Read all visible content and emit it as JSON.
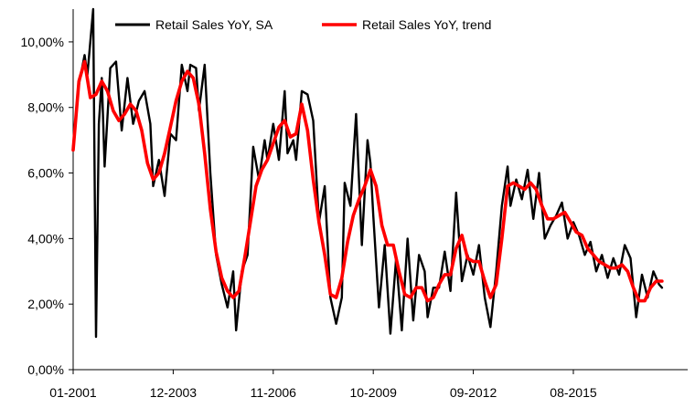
{
  "chart_data": {
    "type": "line",
    "title": "",
    "xlabel": "",
    "ylabel": "",
    "x_start": "01-2001",
    "x_end": "12-2018",
    "x_ticks": [
      "01-2001",
      "12-2003",
      "11-2006",
      "10-2009",
      "09-2012",
      "08-2015"
    ],
    "ylim": [
      0,
      11
    ],
    "y_ticks": [
      "0,00%",
      "2,00%",
      "4,00%",
      "6,00%",
      "8,00%",
      "10,00%"
    ],
    "grid": false,
    "legend_position": "top",
    "series": [
      {
        "name": "Retail Sales YoY, SA",
        "color": "#000000",
        "points": [
          [
            "01-2001",
            6.8
          ],
          [
            "03-2001",
            8.7
          ],
          [
            "05-2001",
            9.6
          ],
          [
            "06-2001",
            9.0
          ],
          [
            "08-2001",
            11.0
          ],
          [
            "09-2001",
            1.0
          ],
          [
            "10-2001",
            7.5
          ],
          [
            "11-2001",
            8.9
          ],
          [
            "12-2001",
            6.2
          ],
          [
            "02-2002",
            9.2
          ],
          [
            "04-2002",
            9.4
          ],
          [
            "06-2002",
            7.3
          ],
          [
            "08-2002",
            8.9
          ],
          [
            "10-2002",
            7.5
          ],
          [
            "12-2002",
            8.2
          ],
          [
            "02-2003",
            8.5
          ],
          [
            "04-2003",
            7.5
          ],
          [
            "05-2003",
            5.6
          ],
          [
            "07-2003",
            6.4
          ],
          [
            "09-2003",
            5.3
          ],
          [
            "11-2003",
            7.2
          ],
          [
            "01-2004",
            7.0
          ],
          [
            "03-2004",
            9.3
          ],
          [
            "05-2004",
            8.5
          ],
          [
            "06-2004",
            9.3
          ],
          [
            "08-2004",
            9.2
          ],
          [
            "09-2004",
            7.9
          ],
          [
            "11-2004",
            9.3
          ],
          [
            "01-2005",
            6.0
          ],
          [
            "03-2005",
            3.5
          ],
          [
            "05-2005",
            2.6
          ],
          [
            "07-2005",
            1.9
          ],
          [
            "09-2005",
            3.0
          ],
          [
            "10-2005",
            1.2
          ],
          [
            "12-2005",
            3.0
          ],
          [
            "02-2006",
            3.5
          ],
          [
            "04-2006",
            6.8
          ],
          [
            "06-2006",
            5.8
          ],
          [
            "08-2006",
            7.0
          ],
          [
            "09-2006",
            6.4
          ],
          [
            "11-2006",
            7.5
          ],
          [
            "01-2007",
            6.4
          ],
          [
            "03-2007",
            8.5
          ],
          [
            "04-2007",
            6.6
          ],
          [
            "06-2007",
            7.0
          ],
          [
            "07-2007",
            6.4
          ],
          [
            "09-2007",
            8.5
          ],
          [
            "11-2007",
            8.4
          ],
          [
            "01-2008",
            7.6
          ],
          [
            "03-2008",
            4.5
          ],
          [
            "05-2008",
            5.6
          ],
          [
            "07-2008",
            2.2
          ],
          [
            "09-2008",
            1.4
          ],
          [
            "11-2008",
            2.2
          ],
          [
            "12-2008",
            5.7
          ],
          [
            "02-2009",
            5.0
          ],
          [
            "04-2009",
            7.8
          ],
          [
            "06-2009",
            3.8
          ],
          [
            "08-2009",
            7.0
          ],
          [
            "09-2009",
            6.3
          ],
          [
            "10-2009",
            4.7
          ],
          [
            "12-2009",
            1.9
          ],
          [
            "02-2010",
            3.8
          ],
          [
            "04-2010",
            1.1
          ],
          [
            "06-2010",
            3.4
          ],
          [
            "08-2010",
            1.2
          ],
          [
            "10-2010",
            4.0
          ],
          [
            "12-2010",
            1.5
          ],
          [
            "02-2011",
            3.5
          ],
          [
            "04-2011",
            3.0
          ],
          [
            "05-2011",
            1.6
          ],
          [
            "07-2011",
            2.5
          ],
          [
            "09-2011",
            2.5
          ],
          [
            "11-2011",
            3.6
          ],
          [
            "01-2012",
            2.4
          ],
          [
            "03-2012",
            5.4
          ],
          [
            "05-2012",
            2.7
          ],
          [
            "07-2012",
            3.5
          ],
          [
            "09-2012",
            2.9
          ],
          [
            "11-2012",
            3.8
          ],
          [
            "01-2013",
            2.2
          ],
          [
            "03-2013",
            1.3
          ],
          [
            "05-2013",
            3.0
          ],
          [
            "07-2013",
            5.0
          ],
          [
            "09-2013",
            6.2
          ],
          [
            "10-2013",
            5.0
          ],
          [
            "12-2013",
            5.8
          ],
          [
            "02-2014",
            5.2
          ],
          [
            "04-2014",
            6.1
          ],
          [
            "06-2014",
            4.6
          ],
          [
            "08-2014",
            6.0
          ],
          [
            "10-2014",
            4.0
          ],
          [
            "12-2014",
            4.4
          ],
          [
            "02-2015",
            4.7
          ],
          [
            "04-2015",
            5.1
          ],
          [
            "06-2015",
            4.0
          ],
          [
            "08-2015",
            4.5
          ],
          [
            "10-2015",
            4.1
          ],
          [
            "12-2015",
            3.5
          ],
          [
            "02-2016",
            3.9
          ],
          [
            "04-2016",
            3.0
          ],
          [
            "06-2016",
            3.5
          ],
          [
            "08-2016",
            2.8
          ],
          [
            "10-2016",
            3.4
          ],
          [
            "12-2016",
            2.9
          ],
          [
            "02-2017",
            3.8
          ],
          [
            "04-2017",
            3.4
          ],
          [
            "06-2017",
            1.6
          ],
          [
            "08-2017",
            2.9
          ],
          [
            "10-2017",
            2.2
          ],
          [
            "12-2017",
            3.0
          ],
          [
            "02-2018",
            2.6
          ],
          [
            "03-2018",
            2.5
          ]
        ]
      },
      {
        "name": "Retail Sales YoY, trend",
        "color": "#ff0000",
        "points": [
          [
            "01-2001",
            6.7
          ],
          [
            "03-2001",
            8.8
          ],
          [
            "05-2001",
            9.4
          ],
          [
            "07-2001",
            8.3
          ],
          [
            "09-2001",
            8.4
          ],
          [
            "11-2001",
            8.8
          ],
          [
            "01-2002",
            8.5
          ],
          [
            "03-2002",
            7.9
          ],
          [
            "05-2002",
            7.6
          ],
          [
            "07-2002",
            7.8
          ],
          [
            "09-2002",
            8.1
          ],
          [
            "11-2002",
            7.9
          ],
          [
            "01-2003",
            7.3
          ],
          [
            "03-2003",
            6.3
          ],
          [
            "05-2003",
            5.8
          ],
          [
            "07-2003",
            6.0
          ],
          [
            "09-2003",
            6.6
          ],
          [
            "11-2003",
            7.4
          ],
          [
            "01-2004",
            8.2
          ],
          [
            "03-2004",
            8.8
          ],
          [
            "05-2004",
            9.1
          ],
          [
            "07-2004",
            8.9
          ],
          [
            "09-2004",
            8.1
          ],
          [
            "11-2004",
            6.6
          ],
          [
            "01-2005",
            4.9
          ],
          [
            "03-2005",
            3.6
          ],
          [
            "05-2005",
            2.8
          ],
          [
            "07-2005",
            2.4
          ],
          [
            "09-2005",
            2.2
          ],
          [
            "11-2005",
            2.4
          ],
          [
            "01-2006",
            3.4
          ],
          [
            "03-2006",
            4.5
          ],
          [
            "05-2006",
            5.6
          ],
          [
            "07-2006",
            6.1
          ],
          [
            "09-2006",
            6.4
          ],
          [
            "11-2006",
            6.9
          ],
          [
            "01-2007",
            7.4
          ],
          [
            "03-2007",
            7.6
          ],
          [
            "05-2007",
            7.1
          ],
          [
            "07-2007",
            7.2
          ],
          [
            "09-2007",
            8.1
          ],
          [
            "11-2007",
            7.3
          ],
          [
            "01-2008",
            5.8
          ],
          [
            "03-2008",
            4.5
          ],
          [
            "05-2008",
            3.5
          ],
          [
            "07-2008",
            2.3
          ],
          [
            "09-2008",
            2.2
          ],
          [
            "11-2008",
            2.8
          ],
          [
            "01-2009",
            3.9
          ],
          [
            "03-2009",
            4.7
          ],
          [
            "05-2009",
            5.2
          ],
          [
            "07-2009",
            5.6
          ],
          [
            "09-2009",
            6.1
          ],
          [
            "11-2009",
            5.6
          ],
          [
            "01-2010",
            4.4
          ],
          [
            "03-2010",
            3.8
          ],
          [
            "05-2010",
            3.8
          ],
          [
            "07-2010",
            3.0
          ],
          [
            "09-2010",
            2.3
          ],
          [
            "11-2010",
            2.2
          ],
          [
            "01-2011",
            2.5
          ],
          [
            "03-2011",
            2.5
          ],
          [
            "05-2011",
            2.1
          ],
          [
            "07-2011",
            2.2
          ],
          [
            "09-2011",
            2.6
          ],
          [
            "11-2011",
            2.9
          ],
          [
            "01-2012",
            2.9
          ],
          [
            "03-2012",
            3.7
          ],
          [
            "05-2012",
            4.1
          ],
          [
            "07-2012",
            3.4
          ],
          [
            "09-2012",
            3.3
          ],
          [
            "11-2012",
            3.3
          ],
          [
            "01-2013",
            2.7
          ],
          [
            "03-2013",
            2.2
          ],
          [
            "05-2013",
            2.6
          ],
          [
            "07-2013",
            4.0
          ],
          [
            "09-2013",
            5.6
          ],
          [
            "11-2013",
            5.7
          ],
          [
            "01-2014",
            5.6
          ],
          [
            "03-2014",
            5.5
          ],
          [
            "05-2014",
            5.7
          ],
          [
            "07-2014",
            5.5
          ],
          [
            "09-2014",
            5.0
          ],
          [
            "11-2014",
            4.6
          ],
          [
            "01-2015",
            4.6
          ],
          [
            "03-2015",
            4.7
          ],
          [
            "05-2015",
            4.8
          ],
          [
            "07-2015",
            4.5
          ],
          [
            "09-2015",
            4.2
          ],
          [
            "11-2015",
            4.1
          ],
          [
            "01-2016",
            3.7
          ],
          [
            "03-2016",
            3.5
          ],
          [
            "05-2016",
            3.3
          ],
          [
            "07-2016",
            3.2
          ],
          [
            "09-2016",
            3.1
          ],
          [
            "11-2016",
            3.1
          ],
          [
            "01-2017",
            3.2
          ],
          [
            "03-2017",
            3.0
          ],
          [
            "05-2017",
            2.5
          ],
          [
            "07-2017",
            2.1
          ],
          [
            "09-2017",
            2.1
          ],
          [
            "11-2017",
            2.5
          ],
          [
            "01-2018",
            2.7
          ],
          [
            "03-2018",
            2.7
          ]
        ]
      }
    ]
  }
}
